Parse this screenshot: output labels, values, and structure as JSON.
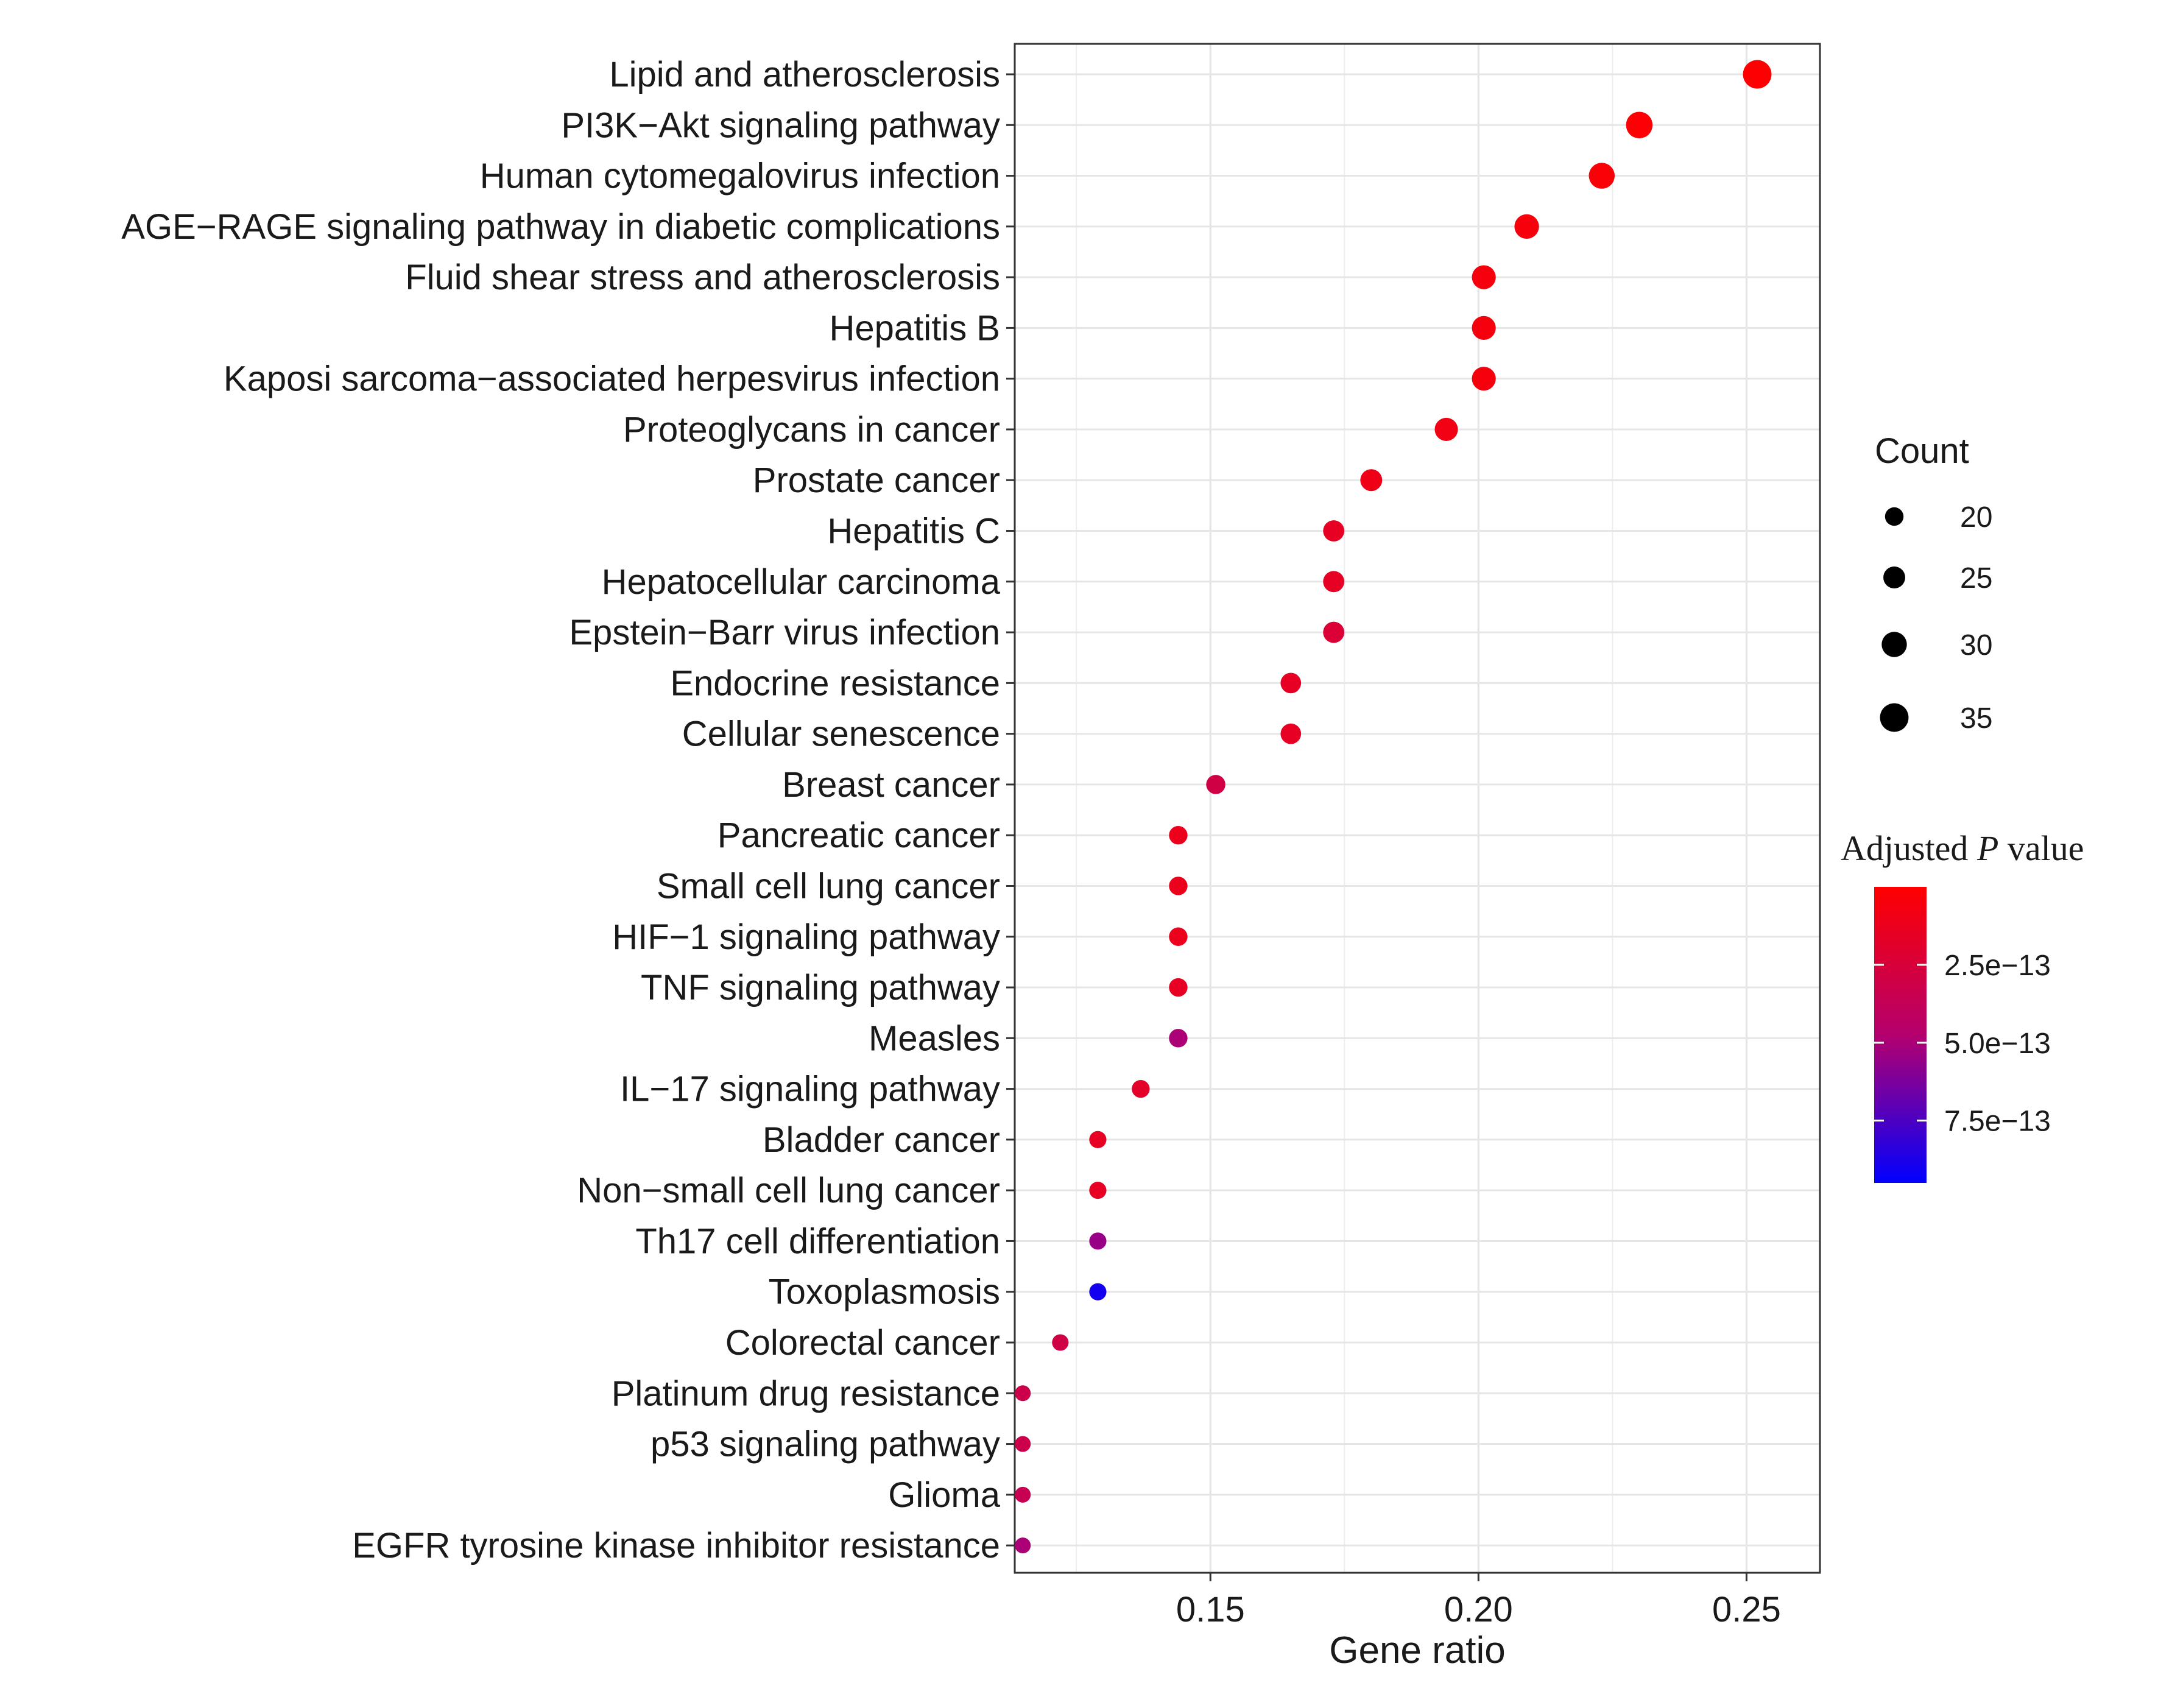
{
  "chart_data": {
    "type": "scatter",
    "xlabel": "Gene ratio",
    "ylabel": "",
    "xlim": [
      0.1135,
      0.2637
    ],
    "xticks": [
      0.15,
      0.2,
      0.25
    ],
    "xtick_labels": [
      "0.15",
      "0.20",
      "0.25"
    ],
    "grid": true,
    "categories": [
      "Lipid and atherosclerosis",
      "PI3K−Akt signaling pathway",
      "Human cytomegalovirus infection",
      "AGE−RAGE signaling pathway in diabetic complications",
      "Fluid shear stress and atherosclerosis",
      "Hepatitis B",
      "Kaposi sarcoma−associated herpesvirus infection",
      "Proteoglycans in cancer",
      "Prostate cancer",
      "Hepatitis C",
      "Hepatocellular carcinoma",
      "Epstein−Barr virus infection",
      "Endocrine resistance",
      "Cellular senescence",
      "Breast cancer",
      "Pancreatic cancer",
      "Small cell lung cancer",
      "HIF−1 signaling pathway",
      "TNF signaling pathway",
      "Measles",
      "IL−17 signaling pathway",
      "Bladder cancer",
      "Non−small cell lung cancer",
      "Th17 cell differentiation",
      "Toxoplasmosis",
      "Colorectal cancer",
      "Platinum drug resistance",
      "p53 signaling pathway",
      "Glioma",
      "EGFR tyrosine kinase inhibitor resistance"
    ],
    "gene_ratio": [
      0.252,
      0.23,
      0.223,
      0.209,
      0.201,
      0.201,
      0.201,
      0.194,
      0.18,
      0.173,
      0.173,
      0.173,
      0.165,
      0.165,
      0.151,
      0.144,
      0.144,
      0.144,
      0.144,
      0.144,
      0.137,
      0.129,
      0.129,
      0.129,
      0.129,
      0.122,
      0.115,
      0.115,
      0.115,
      0.115
    ],
    "count": [
      35,
      32,
      31,
      29,
      28,
      28,
      28,
      27,
      25,
      24,
      24,
      24,
      23,
      23,
      21,
      20,
      20,
      20,
      20,
      20,
      19,
      18,
      18,
      18,
      18,
      17,
      16,
      16,
      16,
      16
    ],
    "p_adjust": [
      1e-14,
      2e-14,
      3e-14,
      5e-14,
      6e-14,
      6e-14,
      6e-14,
      8e-14,
      1e-13,
      1.5e-13,
      1.5e-13,
      2.3e-13,
      1.5e-13,
      1.5e-13,
      3e-13,
      1.2e-13,
      1.2e-13,
      1.2e-13,
      1.5e-13,
      5e-13,
      1.8e-13,
      1.5e-13,
      1.5e-13,
      5.5e-13,
      9e-13,
      3e-13,
      3.2e-13,
      3.2e-13,
      3.5e-13,
      5e-13
    ],
    "legend_size": {
      "title": "Count",
      "values": [
        20,
        25,
        30,
        35
      ],
      "labels": [
        "20",
        "25",
        "30",
        "35"
      ],
      "placement": "right"
    },
    "legend_color": {
      "title_prefix": "Adjusted ",
      "title_italic": "P",
      "title_suffix": " value",
      "range": [
        0,
        9.5e-13
      ],
      "ticks": [
        2.5e-13,
        5e-13,
        7.5e-13
      ],
      "labels": [
        "2.5e−13",
        "5.0e−13",
        "7.5e−13"
      ],
      "low_color": "#ff0000",
      "high_color": "#0000ff",
      "placement": "right"
    }
  }
}
